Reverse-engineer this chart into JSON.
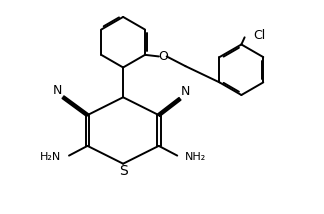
{
  "bg_color": "#ffffff",
  "line_color": "#000000",
  "bond_width": 1.4,
  "font_size": 9,
  "figsize": [
    3.24,
    2.14
  ],
  "dpi": 100,
  "xlim": [
    0,
    10
  ],
  "ylim": [
    0,
    6.6
  ]
}
